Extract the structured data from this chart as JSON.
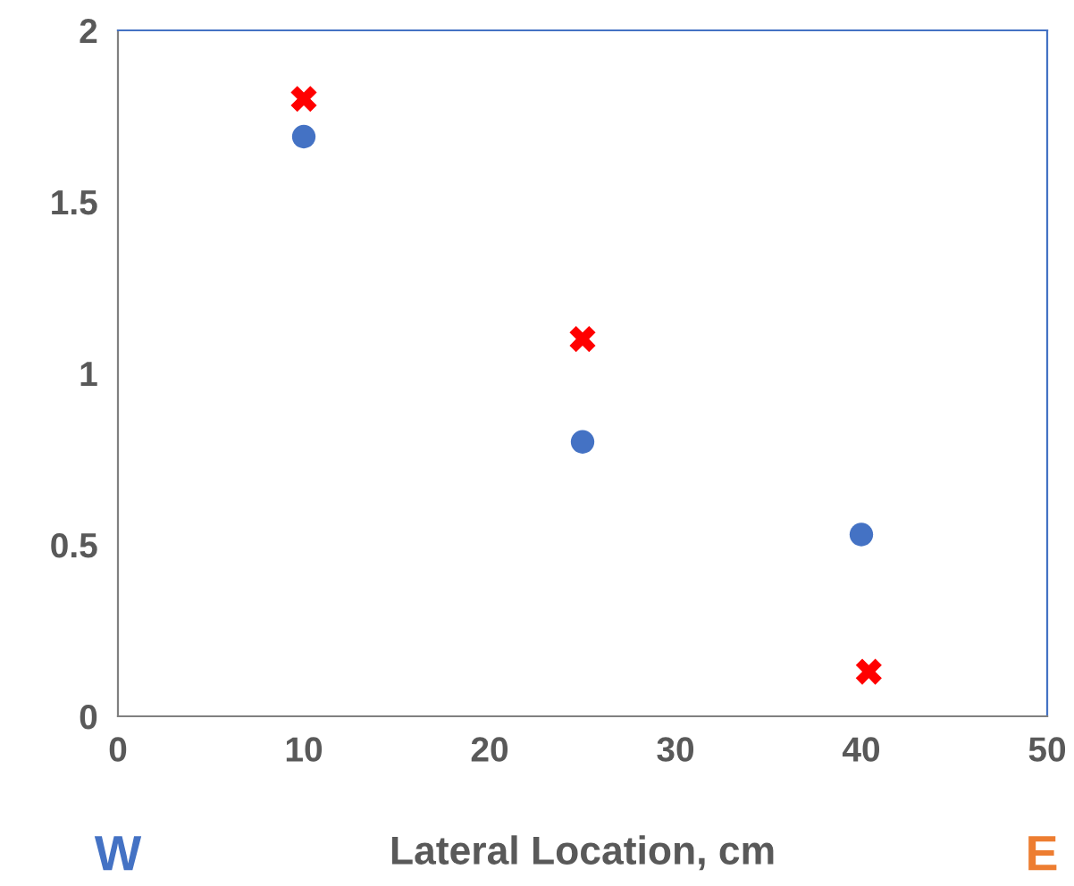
{
  "chart_data": {
    "type": "scatter",
    "xlabel": "Lateral Location, cm",
    "series": [
      {
        "color": "#4472c4",
        "marker": "circle",
        "x": [
          10,
          25,
          40
        ],
        "values": [
          1.69,
          0.8,
          0.53
        ]
      },
      {
        "color": "#ff0000",
        "marker": "cross",
        "x": [
          10,
          25,
          40.4
        ],
        "values": [
          1.8,
          1.1,
          0.13
        ]
      }
    ],
    "xlim": [
      0,
      50
    ],
    "xticks": [
      0,
      10,
      20,
      30,
      40,
      50
    ],
    "ylim": [
      0,
      2
    ],
    "yticks": [
      0,
      0.5,
      1,
      1.5,
      2
    ],
    "grid": false,
    "legend": false,
    "annotations": [
      "W",
      "E"
    ]
  }
}
